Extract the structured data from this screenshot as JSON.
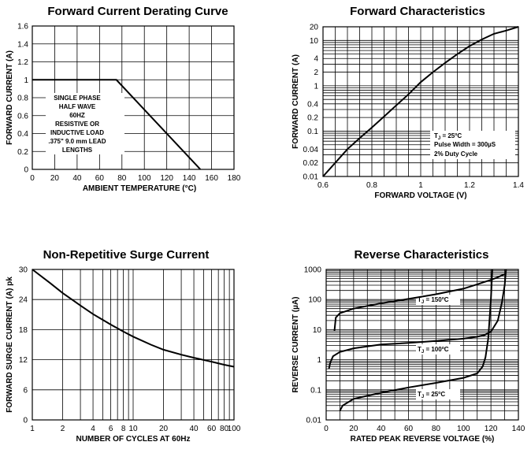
{
  "chart_data": [
    {
      "type": "line",
      "title": "Forward Current Derating Curve",
      "xlabel": "AMBIENT TEMPERATURE (°C)",
      "ylabel": "FORWARD CURRENT (A)",
      "xlim": [
        0,
        180
      ],
      "ylim": [
        0,
        1.6
      ],
      "x_ticks": [
        "0",
        "20",
        "40",
        "60",
        "80",
        "100",
        "120",
        "140",
        "160",
        "180"
      ],
      "y_ticks": [
        "0",
        "0.2",
        "0.4",
        "0.6",
        "0.8",
        "1",
        "1.2",
        "1.4",
        "1.6"
      ],
      "grid": true,
      "series": [
        {
          "x": [
            0,
            75,
            150
          ],
          "y": [
            1.0,
            1.0,
            0
          ]
        }
      ],
      "annotations": [
        "SINGLE PHASE",
        "HALF WAVE",
        "60HZ",
        "RESISTIVE OR",
        "INDUCTIVE LOAD",
        ".375\" 9.0 mm LEAD",
        "LENGTHS"
      ]
    },
    {
      "type": "line",
      "title": "Forward Characteristics",
      "xlabel": "FORWARD VOLTAGE (V)",
      "ylabel": "FORWARD CURRENT (A)",
      "xlim": [
        0.6,
        1.4
      ],
      "ylim": [
        0.01,
        20
      ],
      "y_scale": "log",
      "x_ticks": [
        "0.6",
        "0.8",
        "1",
        "1.2",
        "1.4"
      ],
      "y_ticks": [
        "0.01",
        "0.02",
        "0.04",
        "0.1",
        "0.2",
        "0.4",
        "1",
        "2",
        "4",
        "10",
        "20"
      ],
      "grid": true,
      "series": [
        {
          "x": [
            0.6,
            0.65,
            0.7,
            0.75,
            0.8,
            0.85,
            0.9,
            0.95,
            1.0,
            1.05,
            1.1,
            1.15,
            1.2,
            1.25,
            1.3,
            1.35,
            1.4
          ],
          "y": [
            0.01,
            0.02,
            0.04,
            0.07,
            0.12,
            0.21,
            0.37,
            0.65,
            1.2,
            2.0,
            3.2,
            5.0,
            7.5,
            10.5,
            14.0,
            16.5,
            20.0
          ]
        }
      ],
      "annotations": [
        "T J = 25°C",
        "Pulse Width = 300µS",
        "2% Duty Cycle"
      ]
    },
    {
      "type": "line",
      "title": "Non-Repetitive Surge Current",
      "xlabel": "NUMBER OF CYCLES AT 60Hz",
      "ylabel": "FORWARD SURGE CURRENT (A) pk",
      "xlim": [
        1,
        100
      ],
      "ylim": [
        0,
        30
      ],
      "x_scale": "log",
      "x_ticks": [
        "1",
        "2",
        "4",
        "6",
        "8",
        "10",
        "20",
        "40",
        "60",
        "80",
        "100"
      ],
      "y_ticks": [
        "0",
        "6",
        "12",
        "18",
        "24",
        "30"
      ],
      "grid": true,
      "series": [
        {
          "x": [
            1,
            1.5,
            2,
            3,
            4,
            6,
            8,
            10,
            15,
            20,
            30,
            40,
            60,
            80,
            100
          ],
          "y": [
            30,
            27.3,
            25.3,
            22.8,
            21.1,
            19.0,
            17.6,
            16.6,
            15.0,
            14.0,
            13.0,
            12.4,
            11.6,
            11.0,
            10.6
          ]
        }
      ]
    },
    {
      "type": "line",
      "title": "Reverse Characteristics",
      "xlabel": "RATED PEAK REVERSE VOLTAGE (%)",
      "ylabel": "REVERSE CURRENT (µA)",
      "xlim": [
        0,
        140
      ],
      "ylim": [
        0.01,
        1000
      ],
      "y_scale": "log",
      "x_ticks": [
        "0",
        "20",
        "40",
        "60",
        "80",
        "100",
        "120",
        "140"
      ],
      "y_ticks": [
        "0.01",
        "0.1",
        "1",
        "10",
        "100",
        "1000"
      ],
      "grid": true,
      "series": [
        {
          "name": "T J = 150°C",
          "x": [
            6,
            7,
            10,
            20,
            40,
            60,
            80,
            100,
            110,
            120,
            125,
            130
          ],
          "y": [
            9,
            25,
            35,
            50,
            75,
            105,
            150,
            230,
            320,
            450,
            550,
            700
          ]
        },
        {
          "name": "T J = 100°C",
          "x": [
            2,
            3,
            5,
            10,
            20,
            40,
            60,
            80,
            100,
            110,
            115,
            120,
            125,
            128,
            130,
            131
          ],
          "y": [
            0.5,
            0.8,
            1.3,
            1.8,
            2.4,
            3.2,
            3.6,
            4.2,
            5.0,
            5.8,
            6.5,
            8.5,
            20,
            80,
            300,
            1000
          ]
        },
        {
          "name": "T J = 25°C",
          "x": [
            10,
            12,
            20,
            40,
            60,
            80,
            100,
            110,
            114,
            116,
            118,
            120,
            121
          ],
          "y": [
            0.02,
            0.03,
            0.05,
            0.08,
            0.12,
            0.17,
            0.25,
            0.35,
            0.6,
            1.2,
            5,
            100,
            1000
          ]
        }
      ]
    }
  ]
}
